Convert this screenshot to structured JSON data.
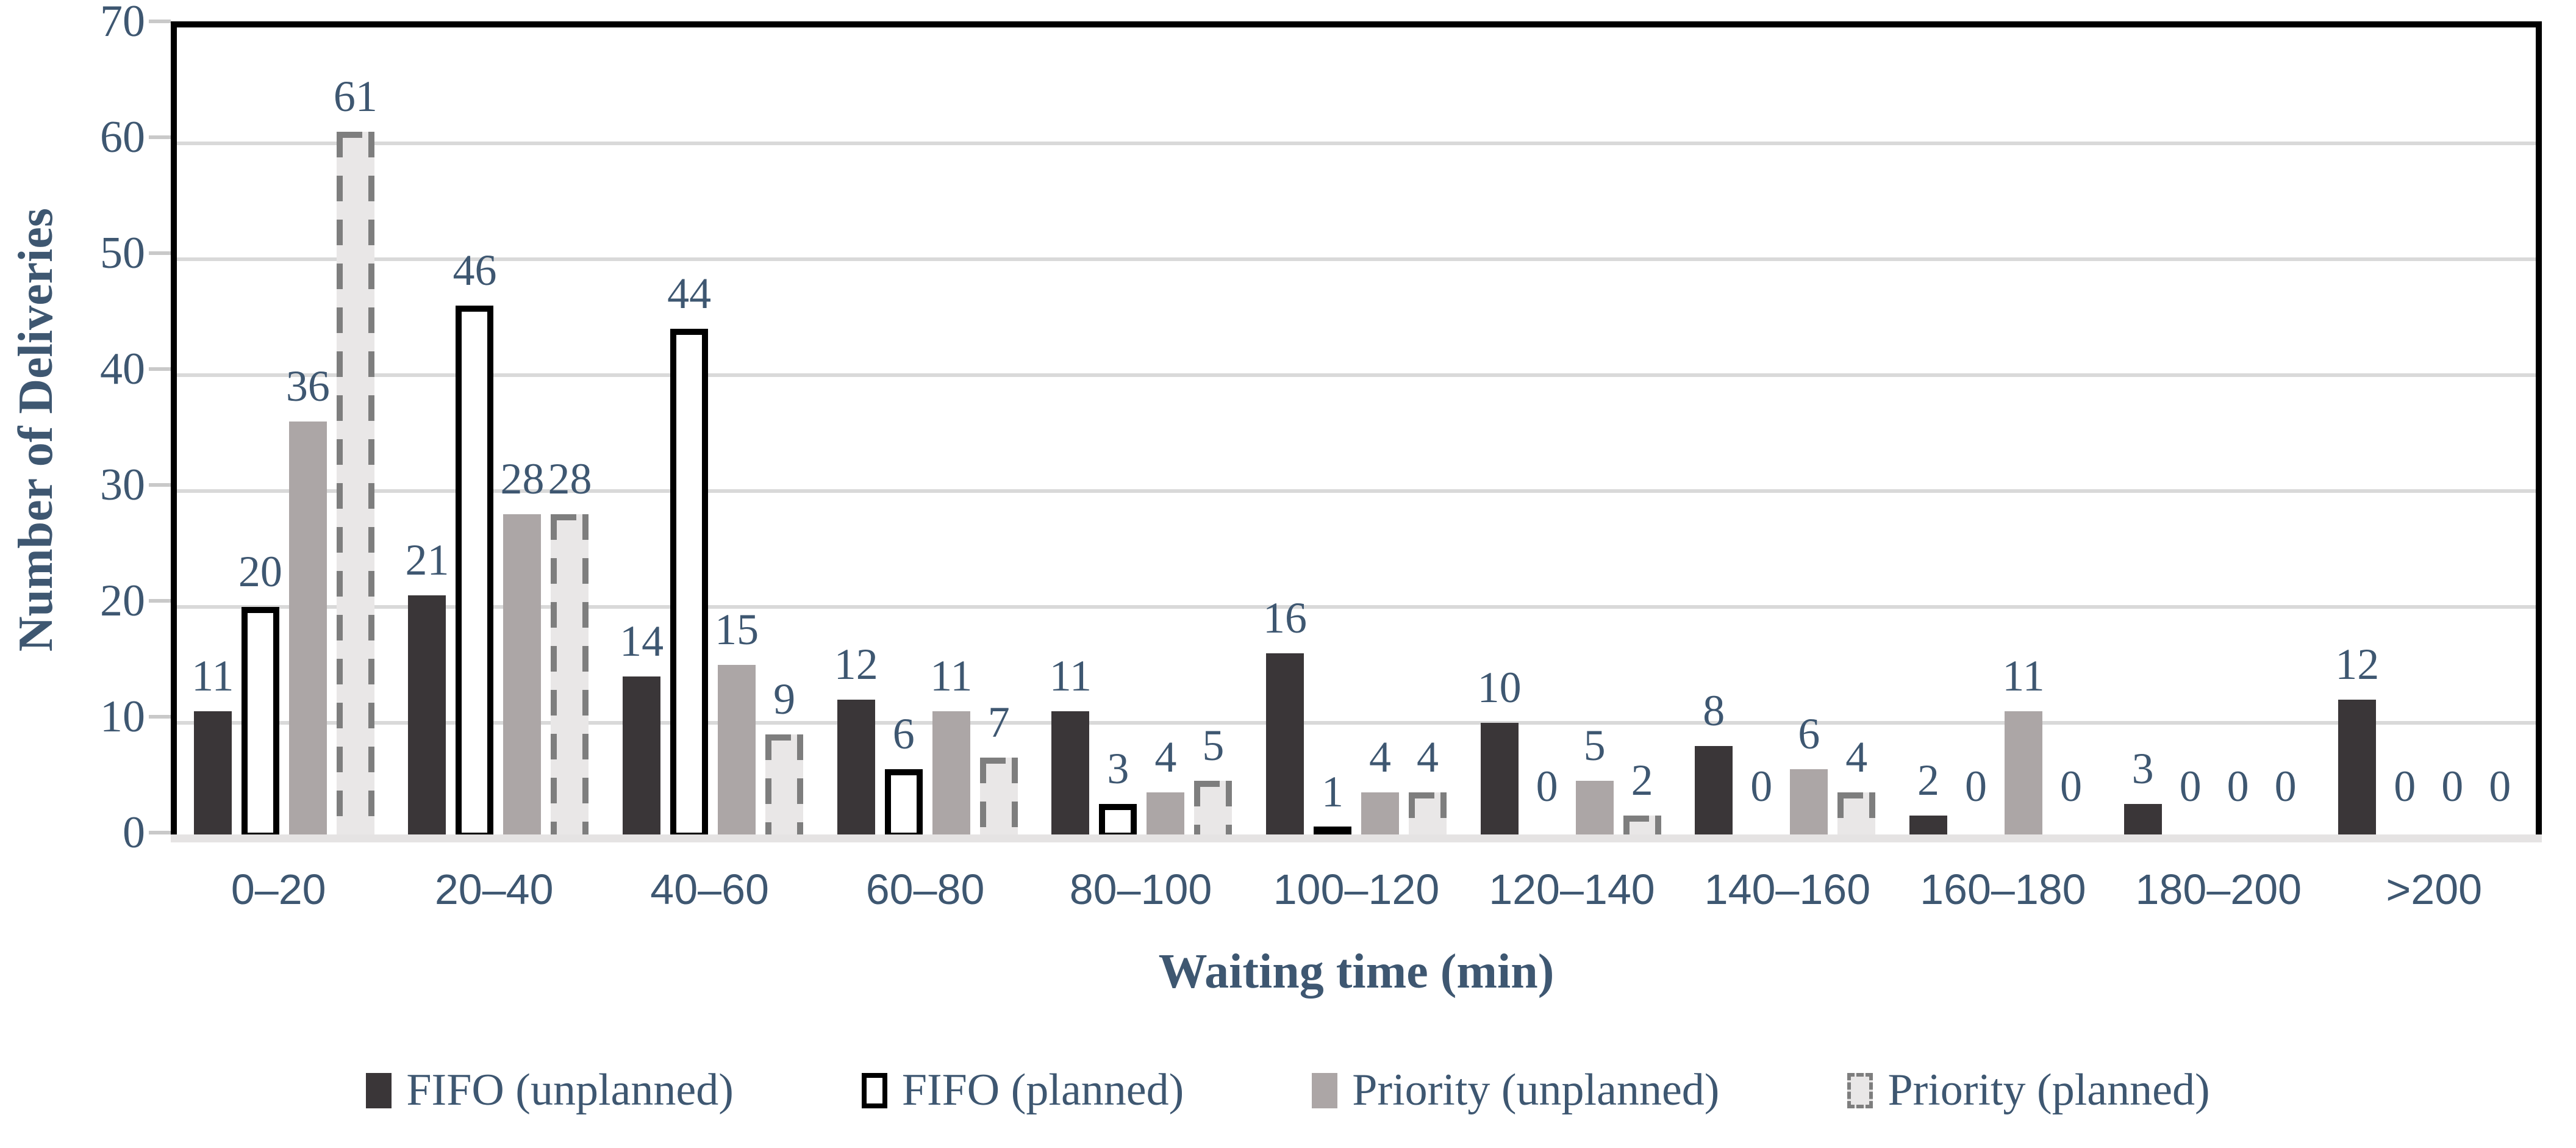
{
  "chart_data": {
    "type": "bar",
    "title": "",
    "categories": [
      "0–20",
      "20–40",
      "40–60",
      "60–80",
      "80–100",
      "100–120",
      "120–140",
      "140–160",
      "160–180",
      "180–200",
      ">200"
    ],
    "series": [
      {
        "name": "FIFO (unplanned)",
        "values": [
          11,
          21,
          14,
          12,
          11,
          16,
          10,
          8,
          2,
          3,
          12
        ],
        "fill": "#3A3638",
        "border": "none",
        "border_color": ""
      },
      {
        "name": "FIFO (planned)",
        "values": [
          20,
          46,
          44,
          6,
          3,
          1,
          0,
          0,
          0,
          0,
          0
        ],
        "fill": "#FFFFFF",
        "border": "solid",
        "border_color": "#000000"
      },
      {
        "name": "Priority (unplanned)",
        "values": [
          36,
          28,
          15,
          11,
          4,
          4,
          5,
          6,
          11,
          0,
          0
        ],
        "fill": "#ACA6A6",
        "border": "none",
        "border_color": ""
      },
      {
        "name": "Priority (planned)",
        "values": [
          61,
          28,
          9,
          7,
          5,
          4,
          2,
          4,
          0,
          0,
          0
        ],
        "fill": "#E9E7E7",
        "border": "dashed",
        "border_color": "#7E7E7E"
      }
    ],
    "xlabel": "Waiting time (min)",
    "ylabel": "Number of Deliveries",
    "ylim": [
      0,
      70
    ],
    "yticks": [
      0,
      10,
      20,
      30,
      40,
      50,
      60,
      70
    ],
    "grid": "horizontal gridlines every 10",
    "legend_position": "bottom",
    "data_labels": "above each bar"
  },
  "colors": {
    "text": "#3E5771",
    "gridline": "#D9D9D9",
    "plot_border": "#000000",
    "category_axis_line": "#E5E3E3"
  }
}
